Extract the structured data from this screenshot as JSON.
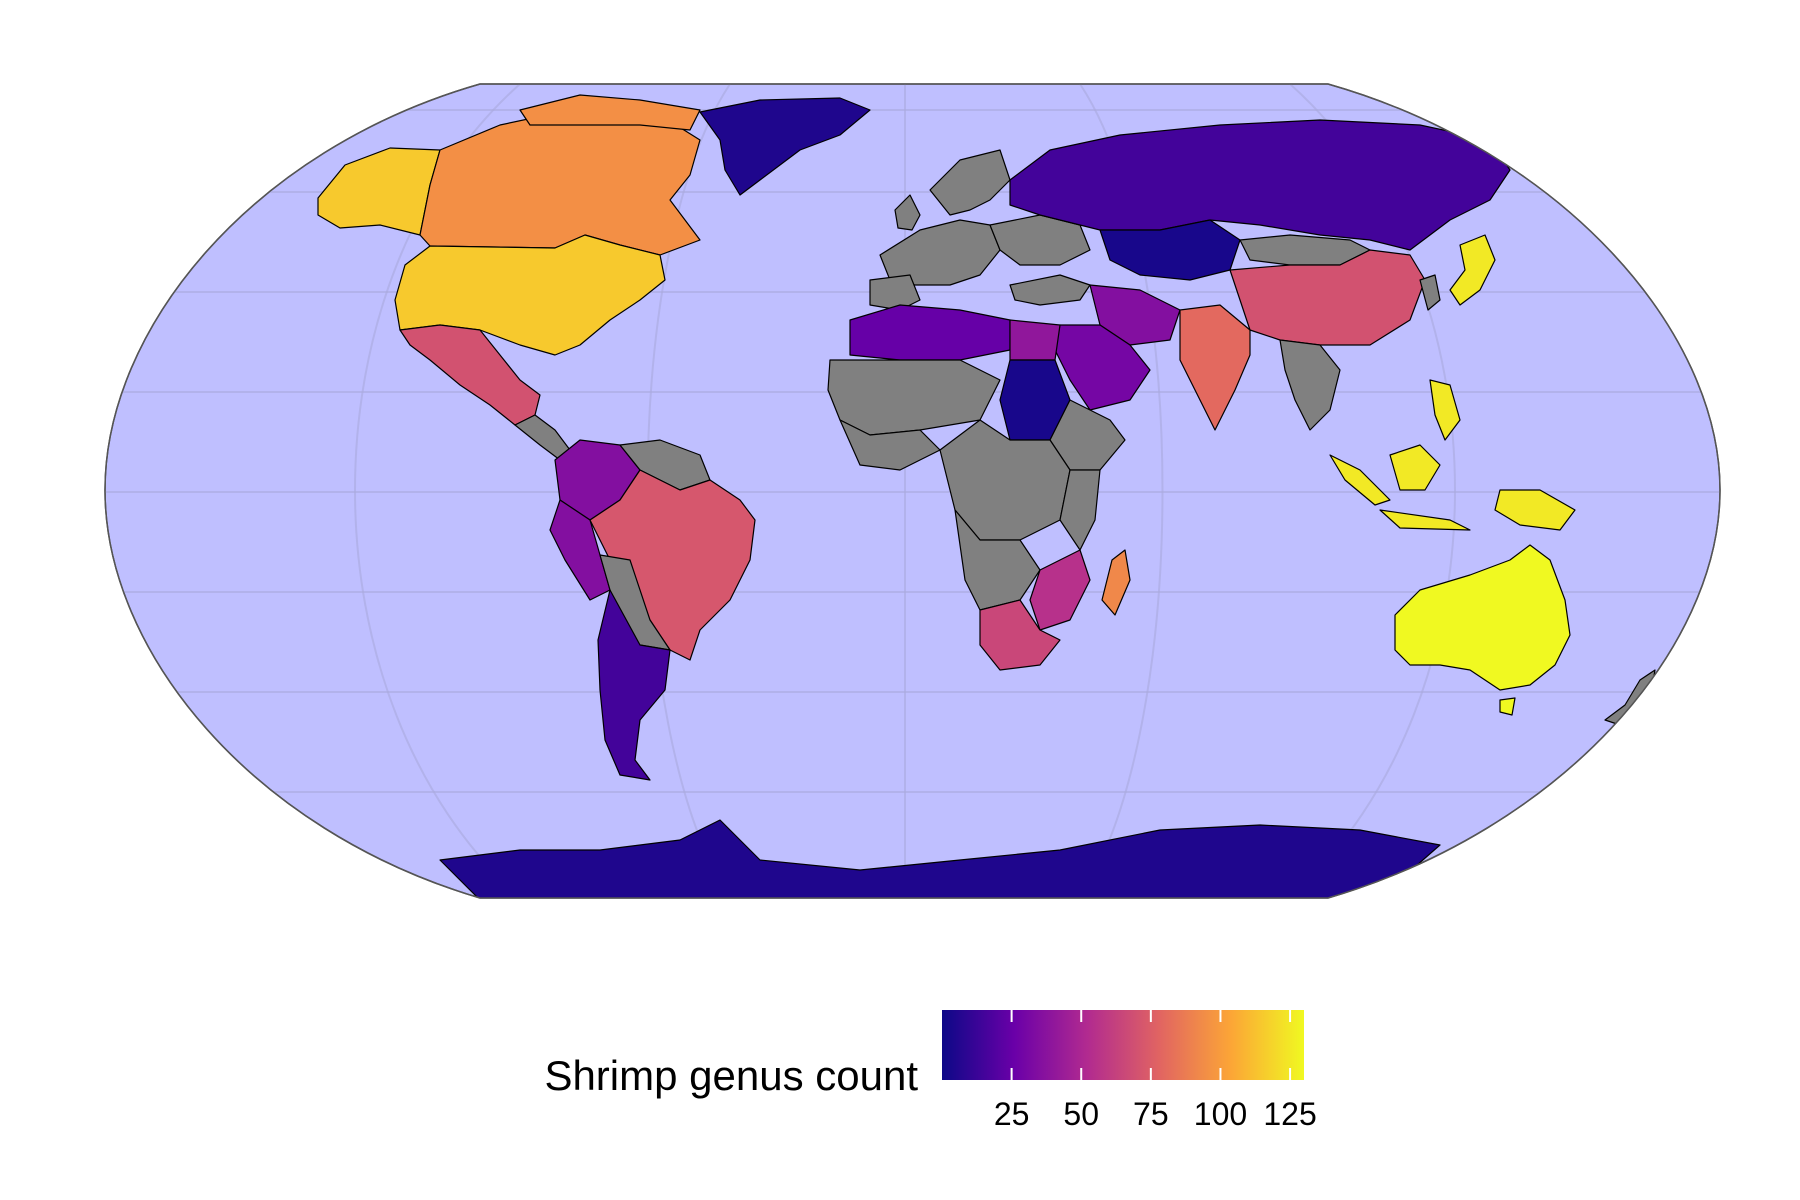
{
  "chart_data": {
    "type": "choropleth",
    "projection": "Robinson",
    "title": "",
    "legend": {
      "title": "Shrimp genus count",
      "placement": "bottom",
      "ticks": [
        25,
        50,
        75,
        100,
        125
      ],
      "range": [
        0,
        130
      ],
      "palette": [
        "#0d0887",
        "#6a00a8",
        "#b12a90",
        "#e16462",
        "#fca636",
        "#f0f921"
      ]
    },
    "no_data_color": "#808080",
    "ocean_color": "#bfbfff",
    "regions": [
      {
        "name": "Australia",
        "value": 130
      },
      {
        "name": "Indonesia",
        "value": 125
      },
      {
        "name": "Japan",
        "value": 125
      },
      {
        "name": "Philippines",
        "value": 125
      },
      {
        "name": "Papua New Guinea",
        "value": 125
      },
      {
        "name": "United States",
        "value": 115
      },
      {
        "name": "Canada",
        "value": 95
      },
      {
        "name": "Madagascar",
        "value": 92
      },
      {
        "name": "India",
        "value": 80
      },
      {
        "name": "Brazil",
        "value": 72
      },
      {
        "name": "China",
        "value": 70
      },
      {
        "name": "Mexico",
        "value": 70
      },
      {
        "name": "South Africa",
        "value": 65
      },
      {
        "name": "Mozambique",
        "value": 55
      },
      {
        "name": "Egypt",
        "value": 40
      },
      {
        "name": "Colombia",
        "value": 35
      },
      {
        "name": "Peru",
        "value": 35
      },
      {
        "name": "Saudi Arabia",
        "value": 30
      },
      {
        "name": "Iran",
        "value": 35
      },
      {
        "name": "Algeria",
        "value": 25
      },
      {
        "name": "Libya",
        "value": 20
      },
      {
        "name": "Russia",
        "value": 15
      },
      {
        "name": "Argentina",
        "value": 15
      },
      {
        "name": "Antarctica",
        "value": 5
      },
      {
        "name": "Greenland",
        "value": 5
      },
      {
        "name": "Kazakhstan",
        "value": 3
      },
      {
        "name": "Sudan",
        "value": 3
      }
    ]
  }
}
